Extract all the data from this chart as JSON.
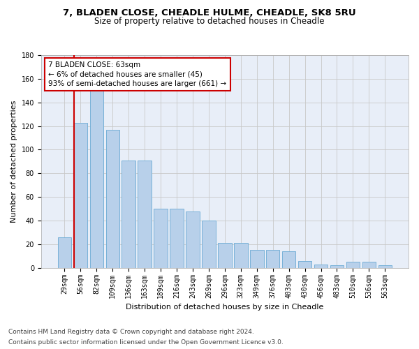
{
  "title1": "7, BLADEN CLOSE, CHEADLE HULME, CHEADLE, SK8 5RU",
  "title2": "Size of property relative to detached houses in Cheadle",
  "xlabel": "Distribution of detached houses by size in Cheadle",
  "ylabel": "Number of detached properties",
  "categories": [
    "29sqm",
    "56sqm",
    "82sqm",
    "109sqm",
    "136sqm",
    "163sqm",
    "189sqm",
    "216sqm",
    "243sqm",
    "269sqm",
    "296sqm",
    "323sqm",
    "349sqm",
    "376sqm",
    "403sqm",
    "430sqm",
    "456sqm",
    "483sqm",
    "510sqm",
    "536sqm",
    "563sqm"
  ],
  "values": [
    26,
    123,
    150,
    117,
    91,
    91,
    50,
    50,
    48,
    40,
    21,
    21,
    15,
    15,
    14,
    6,
    3,
    2,
    5,
    5,
    2
  ],
  "bar_color": "#b8d0ea",
  "bar_edge_color": "#6aaad4",
  "vline_color": "#cc0000",
  "vline_x_idx": 1,
  "annotation_text": "7 BLADEN CLOSE: 63sqm\n← 6% of detached houses are smaller (45)\n93% of semi-detached houses are larger (661) →",
  "annotation_box_color": "#ffffff",
  "annotation_box_edge": "#cc0000",
  "ylim": [
    0,
    180
  ],
  "yticks": [
    0,
    20,
    40,
    60,
    80,
    100,
    120,
    140,
    160,
    180
  ],
  "footer1": "Contains HM Land Registry data © Crown copyright and database right 2024.",
  "footer2": "Contains public sector information licensed under the Open Government Licence v3.0.",
  "bg_color": "#ffffff",
  "plot_bg_color": "#e8eef8",
  "grid_color": "#c8c8c8",
  "title1_fontsize": 9.5,
  "title2_fontsize": 8.5,
  "axis_label_fontsize": 8,
  "tick_fontsize": 7,
  "footer_fontsize": 6.5,
  "annotation_fontsize": 7.5
}
